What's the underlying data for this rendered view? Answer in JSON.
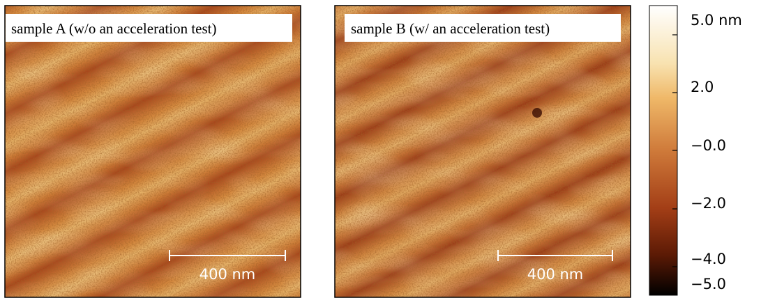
{
  "panels": [
    {
      "label": "sample A (w/o an acceleration test)",
      "scale_bar": "400 nm"
    },
    {
      "label": "sample B (w/ an acceleration test)",
      "scale_bar": "400 nm"
    }
  ],
  "colorbar": {
    "tick_labels": [
      "5.0 nm",
      "2.0",
      "−0.0",
      "−2.0",
      "−4.0",
      "−5.0"
    ]
  }
}
